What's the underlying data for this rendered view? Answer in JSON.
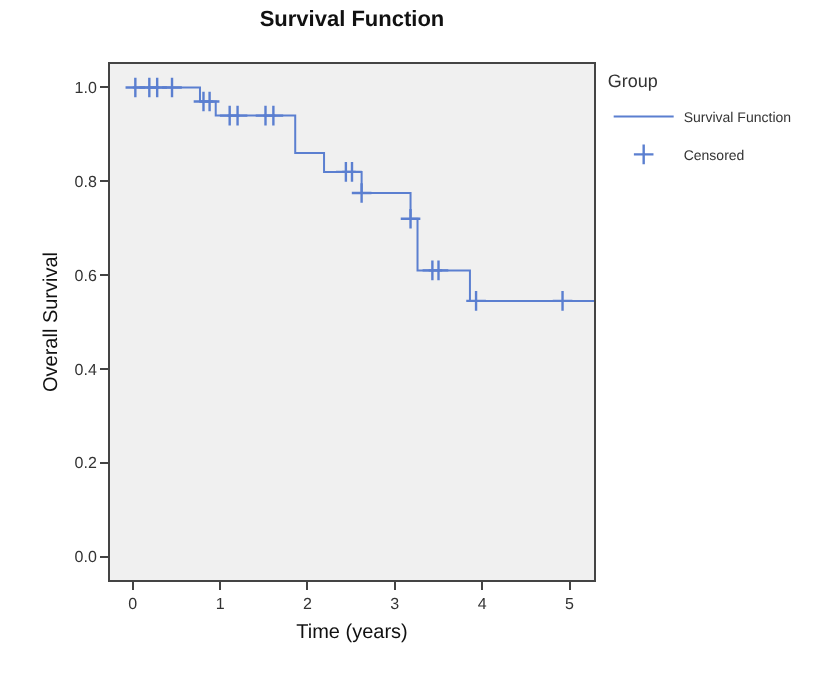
{
  "chart_data": {
    "type": "step",
    "title": "Survival Function",
    "xlabel": "Time (years)",
    "ylabel": "Overall Survival",
    "legend_title": "Group",
    "series": [
      {
        "name": "Survival Function",
        "color": "#5b7fd0",
        "x": [
          0,
          0.77,
          0.95,
          1.86,
          2.19,
          2.62,
          3.18,
          3.26,
          3.86,
          5.28
        ],
        "values": [
          1.0,
          0.97,
          0.94,
          0.86,
          0.82,
          0.775,
          0.72,
          0.61,
          0.545,
          0.545
        ]
      },
      {
        "name": "Censored",
        "type": "scatter",
        "color": "#5b7fd0",
        "marker": "cross",
        "x": [
          0.03,
          0.19,
          0.28,
          0.45,
          0.81,
          0.88,
          1.11,
          1.2,
          1.52,
          1.61,
          2.44,
          2.51,
          2.62,
          3.18,
          3.43,
          3.5,
          3.93,
          4.92
        ],
        "values": [
          1.0,
          1.0,
          1.0,
          1.0,
          0.97,
          0.97,
          0.94,
          0.94,
          0.94,
          0.94,
          0.82,
          0.82,
          0.775,
          0.72,
          0.61,
          0.61,
          0.545,
          0.545
        ]
      }
    ],
    "xlim": [
      -0.26,
      5.28
    ],
    "xticks": [
      0,
      1,
      2,
      3,
      4,
      5
    ],
    "ylim": [
      -0.05,
      1.05
    ],
    "yticks": [
      {
        "value": 0,
        "label": "0.0"
      },
      {
        "value": 0.2,
        "label": "0.2"
      },
      {
        "value": 0.4,
        "label": "0.4"
      },
      {
        "value": 0.6,
        "label": "0.6"
      },
      {
        "value": 0.8,
        "label": "0.8"
      },
      {
        "value": 1,
        "label": "1.0"
      }
    ],
    "grid": false,
    "legend": "top right"
  }
}
